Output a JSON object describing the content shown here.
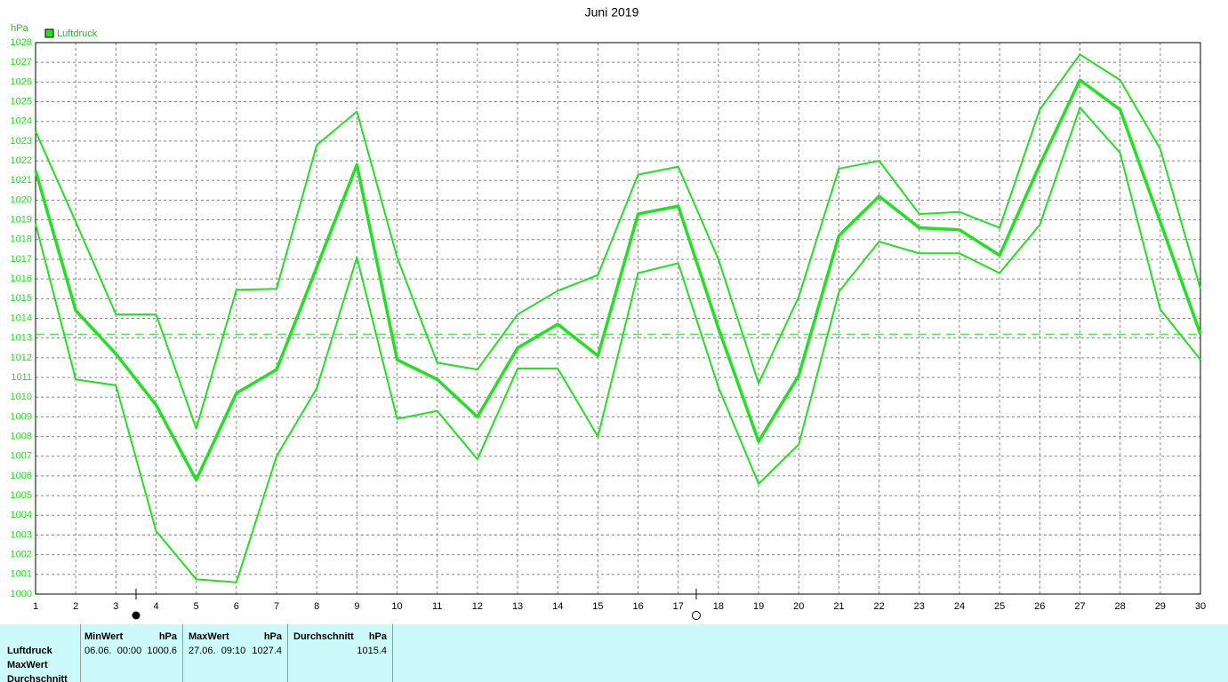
{
  "chart_data": {
    "type": "line",
    "title": "Juni 2019",
    "ylabel": "hPa",
    "x": [
      1,
      2,
      3,
      4,
      5,
      6,
      7,
      8,
      9,
      10,
      11,
      12,
      13,
      14,
      15,
      16,
      17,
      18,
      19,
      20,
      21,
      22,
      23,
      24,
      25,
      26,
      27,
      28,
      29,
      30
    ],
    "xlim": [
      1,
      30
    ],
    "xticks": [
      1,
      2,
      3,
      4,
      5,
      6,
      7,
      8,
      9,
      10,
      11,
      12,
      13,
      14,
      15,
      16,
      17,
      18,
      19,
      20,
      21,
      22,
      23,
      24,
      25,
      26,
      27,
      28,
      29,
      30
    ],
    "ylim": [
      1000,
      1028
    ],
    "yticks": [
      1000,
      1001,
      1002,
      1003,
      1004,
      1005,
      1006,
      1007,
      1008,
      1009,
      1010,
      1011,
      1012,
      1013,
      1014,
      1015,
      1016,
      1017,
      1018,
      1019,
      1020,
      1021,
      1022,
      1023,
      1024,
      1025,
      1026,
      1027,
      1028
    ],
    "grid": true,
    "hline": 1013.2,
    "series": [
      {
        "name": "Luftdruck",
        "color": "#22e022",
        "values": [
          1021.5,
          1014.4,
          1012.2,
          1009.6,
          1005.8,
          1010.2,
          1011.4,
          1016.6,
          1021.8,
          1011.9,
          1010.9,
          1009.0,
          1012.5,
          1013.7,
          1012.1,
          1019.3,
          1019.7,
          1013.5,
          1007.75,
          1011.1,
          1018.2,
          1020.2,
          1018.6,
          1018.5,
          1017.2,
          1021.8,
          1026.1,
          1024.6,
          1018.9,
          1013.2
        ]
      },
      {
        "color": "#22e022",
        "values": [
          1023.5,
          1018.9,
          1014.2,
          1014.2,
          1008.4,
          1015.45,
          1015.5,
          1022.8,
          1024.5,
          1017.1,
          1011.75,
          1011.4,
          1014.2,
          1015.4,
          1016.2,
          1021.3,
          1021.7,
          1017.0,
          1010.7,
          1015.1,
          1021.6,
          1022.0,
          1019.3,
          1019.4,
          1018.6,
          1024.6,
          1027.4,
          1026.1,
          1022.6,
          1015.5
        ]
      },
      {
        "color": "#22e022",
        "values": [
          1018.8,
          1010.9,
          1010.6,
          1003.2,
          1000.75,
          1000.6,
          1007.0,
          1010.45,
          1017.1,
          1008.9,
          1009.3,
          1006.85,
          1011.45,
          1011.45,
          1008.0,
          1016.3,
          1016.8,
          1010.5,
          1005.6,
          1007.6,
          1015.35,
          1017.9,
          1017.3,
          1017.3,
          1016.3,
          1018.75,
          1024.7,
          1022.4,
          1014.45,
          1011.9
        ]
      }
    ]
  },
  "stats": {
    "row_labels": [
      "Luftdruck",
      "MaxWert",
      "Durchschnitt"
    ],
    "columns": [
      {
        "header": "MinWert",
        "unit": "hPa",
        "time": "06.06.  00:00",
        "value": "1000.6"
      },
      {
        "header": "MaxWert",
        "unit": "hPa",
        "time": "27.06.  09:10",
        "value": "1027.4"
      },
      {
        "header": "Durchschnitt",
        "unit": "hPa",
        "value": "1015.4"
      }
    ]
  }
}
